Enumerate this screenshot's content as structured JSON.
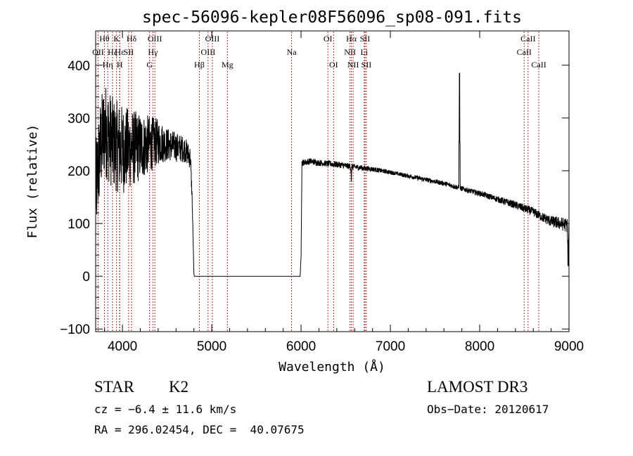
{
  "chart_data": {
    "type": "line",
    "title": "spec-56096-kepler08F56096_sp08-091.fits",
    "xlabel": "Wavelength (Å)",
    "ylabel": "Flux (relative)",
    "xlim": [
      3700,
      9000
    ],
    "ylim": [
      -105,
      465
    ],
    "xticks": [
      4000,
      5000,
      6000,
      7000,
      8000,
      9000
    ],
    "yticks": [
      -100,
      0,
      100,
      200,
      300,
      400
    ],
    "series": [
      {
        "name": "spectrum",
        "anchors": [
          [
            3700,
            160
          ],
          [
            3750,
            240
          ],
          [
            3800,
            280
          ],
          [
            3900,
            250
          ],
          [
            4000,
            240
          ],
          [
            4200,
            245
          ],
          [
            4400,
            255
          ],
          [
            4600,
            245
          ],
          [
            4700,
            240
          ],
          [
            4760,
            225
          ],
          [
            4780,
            150
          ],
          [
            4800,
            5
          ],
          [
            4805,
            0
          ],
          [
            5990,
            0
          ],
          [
            6000,
            40
          ],
          [
            6010,
            215
          ],
          [
            6100,
            218
          ],
          [
            6200,
            215
          ],
          [
            6400,
            212
          ],
          [
            6560,
            208
          ],
          [
            6800,
            203
          ],
          [
            7000,
            197
          ],
          [
            7200,
            190
          ],
          [
            7400,
            183
          ],
          [
            7600,
            176
          ],
          [
            7800,
            166
          ],
          [
            8000,
            157
          ],
          [
            8200,
            146
          ],
          [
            8400,
            135
          ],
          [
            8600,
            122
          ],
          [
            8700,
            112
          ],
          [
            8800,
            104
          ],
          [
            8900,
            100
          ],
          [
            9000,
            96
          ]
        ],
        "noise": [
          [
            3700,
            95
          ],
          [
            4000,
            85
          ],
          [
            4300,
            55
          ],
          [
            4500,
            32
          ],
          [
            4760,
            22
          ],
          [
            4800,
            0
          ],
          [
            5995,
            0
          ],
          [
            6010,
            6
          ],
          [
            6500,
            6
          ],
          [
            7000,
            4
          ],
          [
            8000,
            5
          ],
          [
            8700,
            9
          ],
          [
            9000,
            14
          ]
        ],
        "spikes": [
          {
            "x": 7774,
            "y": 385
          },
          {
            "x": 6563,
            "y": 180
          },
          {
            "x": 8990,
            "y": 20
          }
        ]
      }
    ],
    "lines": [
      {
        "label": "OII",
        "x": 3727,
        "row": 1
      },
      {
        "label": "Hθ",
        "x": 3798,
        "row": 0
      },
      {
        "label": "Hη",
        "x": 3835,
        "row": 2
      },
      {
        "label": "Hζ",
        "x": 3889,
        "row": 1
      },
      {
        "label": "K",
        "x": 3934,
        "row": 0
      },
      {
        "label": "H",
        "x": 3969,
        "row": 2
      },
      {
        "label": "Hε",
        "x": 3970,
        "row": 1
      },
      {
        "label": "SII",
        "x": 4070,
        "row": 1
      },
      {
        "label": "Hδ",
        "x": 4102,
        "row": 0
      },
      {
        "label": "G",
        "x": 4304,
        "row": 2
      },
      {
        "label": "Hγ",
        "x": 4341,
        "row": 1
      },
      {
        "label": "OIII",
        "x": 4363,
        "row": 0
      },
      {
        "label": "Hβ",
        "x": 4861,
        "row": 2
      },
      {
        "label": "OIII",
        "x": 4959,
        "row": 1
      },
      {
        "label": "OIII",
        "x": 5007,
        "row": 0
      },
      {
        "label": "Mg",
        "x": 5175,
        "row": 2
      },
      {
        "label": "Na",
        "x": 5894,
        "row": 1
      },
      {
        "label": "OI",
        "x": 6300,
        "row": 0
      },
      {
        "label": "OI",
        "x": 6364,
        "row": 2
      },
      {
        "label": "NII",
        "x": 6548,
        "row": 1
      },
      {
        "label": "Hα",
        "x": 6563,
        "row": 0
      },
      {
        "label": "NII",
        "x": 6583,
        "row": 2
      },
      {
        "label": "Li",
        "x": 6707,
        "row": 1
      },
      {
        "label": "SII",
        "x": 6716,
        "row": 0
      },
      {
        "label": "SII",
        "x": 6731,
        "row": 2
      },
      {
        "label": "CaII",
        "x": 8498,
        "row": 1
      },
      {
        "label": "CaII",
        "x": 8542,
        "row": 0
      },
      {
        "label": "CaII",
        "x": 8662,
        "row": 2
      }
    ],
    "line_color": "#b03030"
  },
  "info": {
    "class": "STAR",
    "subclass": "K2",
    "survey": "LAMOST DR3",
    "cz": "cz = −6.4 ± 11.6 km/s",
    "obs_date": "Obs−Date: 20120617",
    "coords": "RA = 296.02454, DEC =  40.07675"
  }
}
